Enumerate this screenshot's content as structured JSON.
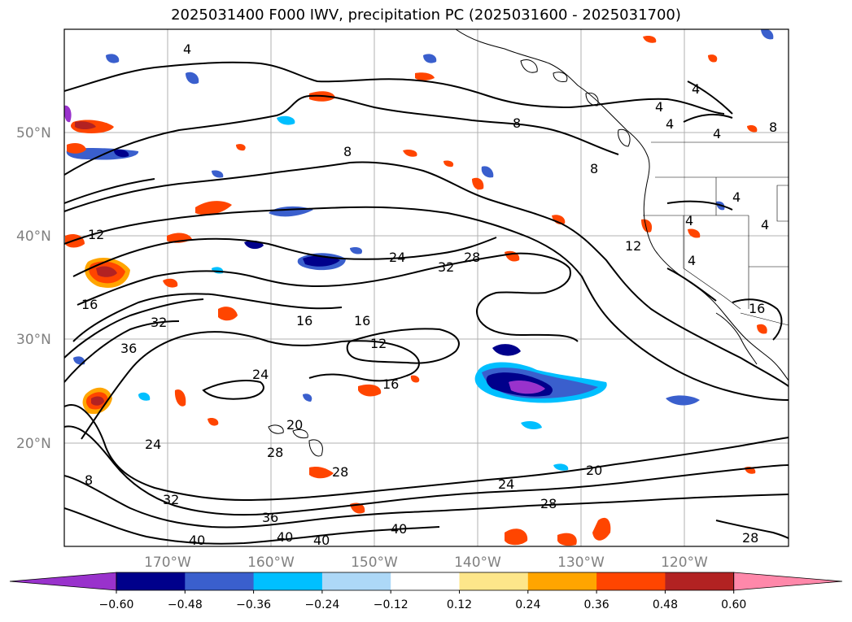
{
  "title": "2025031400 F000 IWV, precipitation PC (2025031600 - 2025031700)",
  "lat_labels": [
    "50°N",
    "40°N",
    "30°N",
    "20°N"
  ],
  "lon_labels": [
    "170°W",
    "160°W",
    "150°W",
    "140°W",
    "130°W",
    "120°W"
  ],
  "colorbar": {
    "ticks": [
      "−0.60",
      "−0.48",
      "−0.36",
      "−0.24",
      "−0.12",
      "0.12",
      "0.24",
      "0.36",
      "0.48",
      "0.60"
    ],
    "colors": [
      "#9932cc",
      "#00008b",
      "#3a5fcd",
      "#00bfff",
      "#add8f7",
      "#ffffff",
      "#fde68a",
      "#ffa500",
      "#ff4500",
      "#b22222",
      "#ff88aa"
    ]
  },
  "contour_labels": [
    "4",
    "4",
    "8",
    "8",
    "8",
    "4",
    "4",
    "4",
    "8",
    "4",
    "4",
    "4",
    "4",
    "12",
    "12",
    "12",
    "16",
    "16",
    "16",
    "16",
    "16",
    "24",
    "32",
    "28",
    "36",
    "32",
    "24",
    "20",
    "24",
    "28",
    "28",
    "32",
    "36",
    "40",
    "40",
    "40",
    "40",
    "20",
    "24",
    "28",
    "28",
    "8"
  ]
}
